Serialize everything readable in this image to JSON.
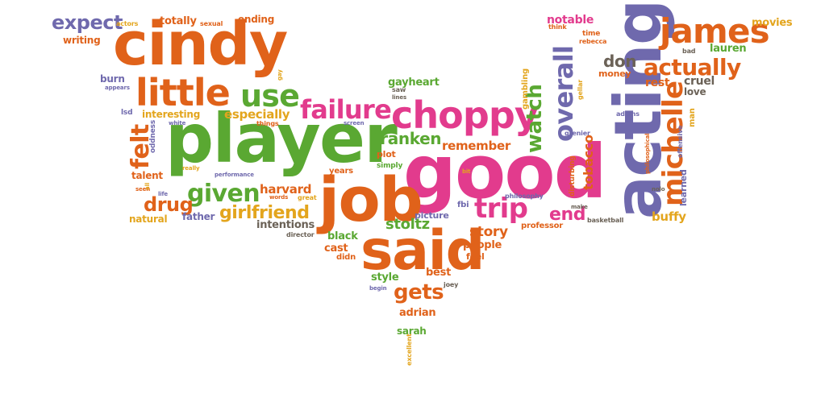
{
  "colors": {
    "orange": "#e0621a",
    "pink": "#e23b8d",
    "green": "#5aa832",
    "purple": "#6f69ad",
    "gold": "#e3a51d",
    "brown": "#6b6257",
    "background": "#ffffff"
  },
  "words": [
    {
      "text": "cindy",
      "color": "#e0621a"
    },
    {
      "text": "player",
      "color": "#5aa832"
    },
    {
      "text": "good",
      "color": "#e23b8d"
    },
    {
      "text": "job",
      "color": "#e0621a"
    },
    {
      "text": "said",
      "color": "#e0621a"
    },
    {
      "text": "acting",
      "color": "#6f69ad"
    },
    {
      "text": "little",
      "color": "#e0621a"
    },
    {
      "text": "choppy",
      "color": "#e23b8d"
    },
    {
      "text": "james",
      "color": "#e0621a"
    },
    {
      "text": "michelle",
      "color": "#e0621a"
    },
    {
      "text": "use",
      "color": "#5aa832"
    },
    {
      "text": "failure",
      "color": "#e23b8d"
    },
    {
      "text": "overall",
      "color": "#6f69ad"
    },
    {
      "text": "actually",
      "color": "#e0621a"
    },
    {
      "text": "given",
      "color": "#5aa832"
    },
    {
      "text": "trip",
      "color": "#e23b8d"
    },
    {
      "text": "gets",
      "color": "#e0621a"
    },
    {
      "text": "felt",
      "color": "#e0621a"
    },
    {
      "text": "watch",
      "color": "#5aa832"
    },
    {
      "text": "franken",
      "color": "#5aa832"
    },
    {
      "text": "drug",
      "color": "#e0621a"
    },
    {
      "text": "girlfriend",
      "color": "#e3a51d"
    },
    {
      "text": "end",
      "color": "#e23b8d"
    },
    {
      "text": "don",
      "color": "#6b6257"
    },
    {
      "text": "expect",
      "color": "#6f69ad"
    },
    {
      "text": "stoltz",
      "color": "#5aa832"
    },
    {
      "text": "story",
      "color": "#e0621a"
    },
    {
      "text": "remember",
      "color": "#e0621a"
    },
    {
      "text": "harvard",
      "color": "#e0621a"
    },
    {
      "text": "especially",
      "color": "#e3a51d"
    },
    {
      "text": "tobacco",
      "color": "#e0621a"
    },
    {
      "text": "buffy",
      "color": "#e3a51d"
    },
    {
      "text": "cruel",
      "color": "#6b6257"
    },
    {
      "text": "rest",
      "color": "#e0621a"
    },
    {
      "text": "lauren",
      "color": "#5aa832"
    },
    {
      "text": "notable",
      "color": "#e23b8d"
    },
    {
      "text": "movies",
      "color": "#e3a51d"
    },
    {
      "text": "gayheart",
      "color": "#5aa832"
    },
    {
      "text": "adrian",
      "color": "#e0621a"
    },
    {
      "text": "sarah",
      "color": "#5aa832"
    },
    {
      "text": "people",
      "color": "#e0621a"
    },
    {
      "text": "black",
      "color": "#5aa832"
    },
    {
      "text": "cast",
      "color": "#e0621a"
    },
    {
      "text": "intentions",
      "color": "#6b6257"
    },
    {
      "text": "father",
      "color": "#6f69ad"
    },
    {
      "text": "natural",
      "color": "#e3a51d"
    },
    {
      "text": "plot",
      "color": "#e0621a"
    },
    {
      "text": "talent",
      "color": "#e0621a"
    },
    {
      "text": "interesting",
      "color": "#e3a51d"
    },
    {
      "text": "burn",
      "color": "#6f69ad"
    },
    {
      "text": "writing",
      "color": "#e0621a"
    },
    {
      "text": "totally",
      "color": "#e0621a"
    },
    {
      "text": "ending",
      "color": "#e0621a"
    },
    {
      "text": "money",
      "color": "#e0621a"
    },
    {
      "text": "love",
      "color": "#6b6257"
    },
    {
      "text": "learned",
      "color": "#6f69ad"
    },
    {
      "text": "professor",
      "color": "#e0621a"
    },
    {
      "text": "picture",
      "color": "#6f69ad"
    },
    {
      "text": "style",
      "color": "#5aa832"
    },
    {
      "text": "best",
      "color": "#e0621a"
    },
    {
      "text": "feel",
      "color": "#e0621a"
    },
    {
      "text": "years",
      "color": "#e0621a"
    },
    {
      "text": "simply",
      "color": "#5aa832"
    },
    {
      "text": "gambling",
      "color": "#e3a51d"
    },
    {
      "text": "disturbing",
      "color": "#e0621a"
    },
    {
      "text": "fbi",
      "color": "#6f69ad"
    },
    {
      "text": "didn",
      "color": "#e0621a"
    },
    {
      "text": "things",
      "color": "#e0621a"
    },
    {
      "text": "oddness",
      "color": "#6f69ad"
    },
    {
      "text": "time",
      "color": "#e0621a"
    },
    {
      "text": "rebecca",
      "color": "#e0621a"
    },
    {
      "text": "think",
      "color": "#e0621a"
    },
    {
      "text": "bad",
      "color": "#6b6257"
    },
    {
      "text": "gellar",
      "color": "#e3a51d"
    },
    {
      "text": "adams",
      "color": "#6f69ad"
    },
    {
      "text": "grenier",
      "color": "#6f69ad"
    },
    {
      "text": "man",
      "color": "#e3a51d"
    },
    {
      "text": "offensive",
      "color": "#6f69ad"
    },
    {
      "text": "philosophical",
      "color": "#e0621a"
    },
    {
      "text": "basketball",
      "color": "#6b6257"
    },
    {
      "text": "make",
      "color": "#6b6257"
    },
    {
      "text": "philosophy",
      "color": "#6f69ad"
    },
    {
      "text": "director",
      "color": "#6b6257"
    },
    {
      "text": "joey",
      "color": "#6b6257"
    },
    {
      "text": "begin",
      "color": "#6f69ad"
    },
    {
      "text": "excellent",
      "color": "#e3a51d"
    },
    {
      "text": "actors",
      "color": "#e3a51d"
    },
    {
      "text": "sexual",
      "color": "#e0621a"
    },
    {
      "text": "appears",
      "color": "#6f69ad"
    },
    {
      "text": "lsd",
      "color": "#6f69ad"
    },
    {
      "text": "white",
      "color": "#6f69ad"
    },
    {
      "text": "really",
      "color": "#e3a51d"
    },
    {
      "text": "seen",
      "color": "#e0621a"
    },
    {
      "text": "life",
      "color": "#6f69ad"
    },
    {
      "text": "performance",
      "color": "#6f69ad"
    },
    {
      "text": "words",
      "color": "#e0621a"
    },
    {
      "text": "great",
      "color": "#e3a51d"
    },
    {
      "text": "saw",
      "color": "#6b6257"
    },
    {
      "text": "lines",
      "color": "#6b6257"
    },
    {
      "text": "screen",
      "color": "#6f69ad"
    },
    {
      "text": "bit",
      "color": "#e3a51d"
    },
    {
      "text": "gay",
      "color": "#e3a51d"
    },
    {
      "text": "nolo",
      "color": "#6b6257"
    },
    {
      "text": "all",
      "color": "#e3a51d"
    }
  ]
}
